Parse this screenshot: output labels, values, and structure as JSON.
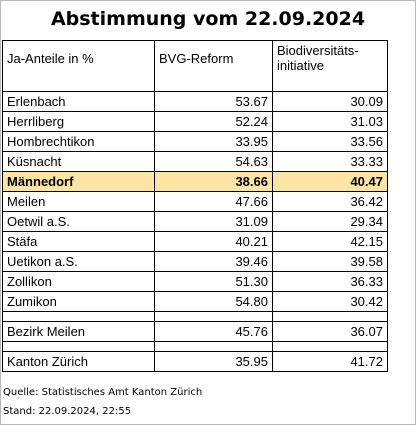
{
  "title": "Abstimmung vom 22.09.2024",
  "table": {
    "headers": [
      "Ja-Anteile in %",
      "BVG-Reform",
      "Biodiversitäts-",
      "initiative"
    ],
    "rows": [
      [
        "Erlenbach",
        "53.67",
        "30.09"
      ],
      [
        "Herrliberg",
        "52.24",
        "31.03"
      ],
      [
        "Hombrechtikon",
        "33.95",
        "33.56"
      ],
      [
        "Küsnacht",
        "54.63",
        "33.33"
      ],
      [
        "Männedorf",
        "38.66",
        "40.47"
      ],
      [
        "Meilen",
        "47.66",
        "36.42"
      ],
      [
        "Oetwil a.S.",
        "31.09",
        "29.34"
      ],
      [
        "Stäfa",
        "40.21",
        "42.15"
      ],
      [
        "Uetikon a.S.",
        "39.46",
        "39.58"
      ],
      [
        "Zollikon",
        "51.30",
        "36.33"
      ],
      [
        "Zumikon",
        "54.80",
        "30.42"
      ]
    ],
    "highlight_color": "#fce4a6",
    "summary": [
      [
        "Bezirk Meilen",
        "45.76",
        "36.07"
      ],
      [
        "Kanton Zürich",
        "35.95",
        "41.72"
      ]
    ]
  },
  "footer": {
    "source": "Quelle: Statistisches Amt Kanton Zürich",
    "stand": "Stand: 22.09.2024, 22:55"
  }
}
